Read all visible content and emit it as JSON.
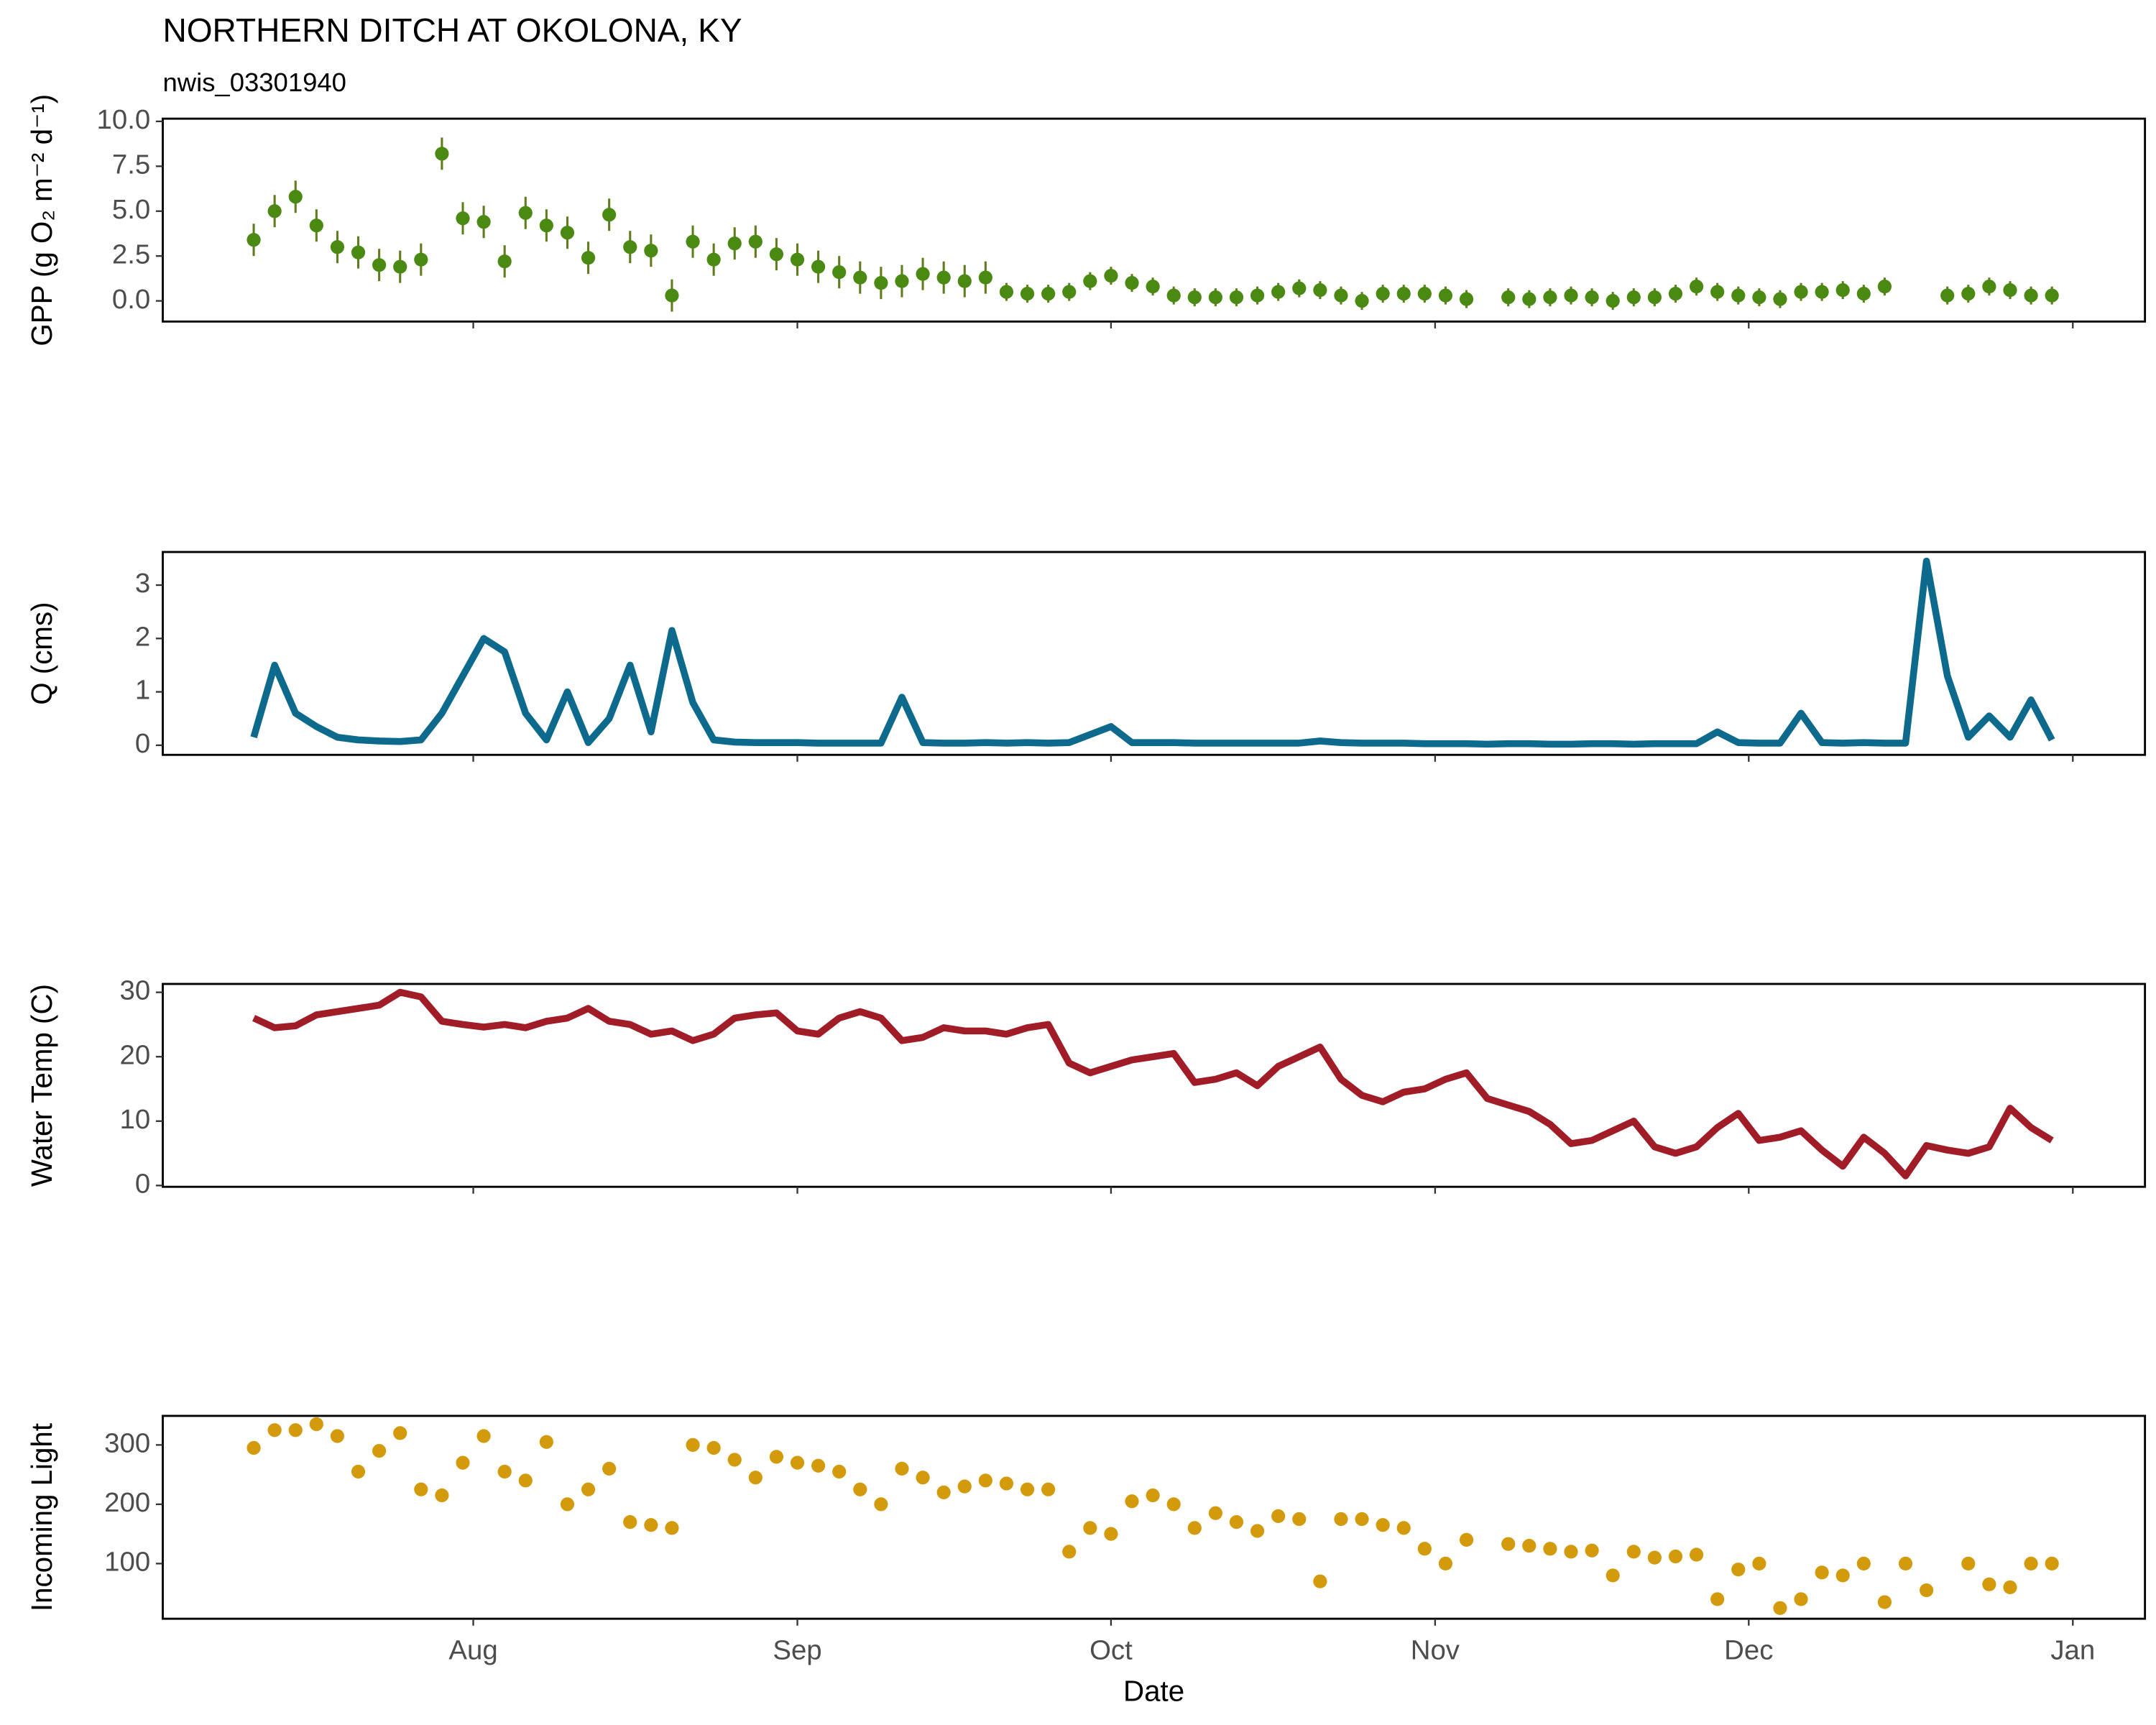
{
  "chart_data": [
    {
      "type": "scatter",
      "title": "NORTHERN DITCH AT OKOLONA, KY",
      "subtitle": "nwis_03301940",
      "ylabel": "GPP (g  O₂ m⁻² d⁻¹)",
      "color": "#4a8a12",
      "error_color": "#5f7d1c",
      "x": [
        -21,
        -19,
        -17,
        -15,
        -13,
        -11,
        -9,
        -7,
        -5,
        -3,
        -1,
        1,
        3,
        5,
        7,
        9,
        11,
        13,
        15,
        17,
        19,
        21,
        23,
        25,
        27,
        29,
        31,
        33,
        35,
        37,
        39,
        41,
        43,
        45,
        47,
        49,
        51,
        53,
        55,
        57,
        59,
        61,
        63,
        65,
        67,
        69,
        71,
        73,
        75,
        77,
        79,
        81,
        83,
        85,
        87,
        89,
        91,
        93,
        95,
        97,
        99,
        101,
        103,
        105,
        107,
        109,
        111,
        113,
        115,
        117,
        119,
        121,
        123,
        125,
        127,
        129,
        131,
        133,
        135,
        137,
        139,
        141,
        143,
        145,
        147,
        149,
        151
      ],
      "values": [
        3.4,
        5.0,
        5.8,
        4.2,
        3.0,
        2.7,
        2.0,
        1.9,
        2.3,
        8.2,
        4.6,
        4.4,
        2.2,
        4.9,
        4.2,
        3.8,
        2.4,
        4.8,
        3.0,
        2.8,
        0.3,
        3.3,
        2.3,
        3.2,
        3.3,
        2.6,
        2.3,
        1.9,
        1.6,
        1.3,
        1.0,
        1.1,
        1.5,
        1.3,
        1.1,
        1.3,
        0.5,
        0.4,
        0.4,
        0.5,
        1.1,
        1.4,
        1.0,
        0.8,
        0.3,
        0.2,
        0.2,
        0.2,
        0.3,
        0.5,
        0.7,
        0.6,
        0.3,
        0.0,
        0.4,
        0.4,
        0.4,
        0.3,
        0.1,
        null,
        0.2,
        0.1,
        0.2,
        0.3,
        0.2,
        0.0,
        0.2,
        0.2,
        0.4,
        0.8,
        0.5,
        0.3,
        0.2,
        0.1,
        0.5,
        0.5,
        0.6,
        0.4,
        0.8,
        null,
        null,
        0.3,
        0.4,
        0.8,
        0.6,
        0.3,
        0.3
      ],
      "errors": [
        0.9,
        0.9,
        0.9,
        0.9,
        0.9,
        0.9,
        0.9,
        0.9,
        0.9,
        0.9,
        0.9,
        0.9,
        0.9,
        0.9,
        0.9,
        0.9,
        0.9,
        0.9,
        0.9,
        0.9,
        0.9,
        0.9,
        0.9,
        0.9,
        0.9,
        0.9,
        0.9,
        0.9,
        0.9,
        0.9,
        0.9,
        0.9,
        0.9,
        0.9,
        0.9,
        0.9,
        0.5,
        0.5,
        0.5,
        0.5,
        0.5,
        0.5,
        0.5,
        0.5,
        0.5,
        0.5,
        0.5,
        0.5,
        0.5,
        0.5,
        0.5,
        0.5,
        0.5,
        0.5,
        0.5,
        0.5,
        0.5,
        0.5,
        0.5,
        null,
        0.5,
        0.5,
        0.5,
        0.5,
        0.5,
        0.5,
        0.5,
        0.5,
        0.5,
        0.5,
        0.5,
        0.5,
        0.5,
        0.5,
        0.5,
        0.5,
        0.5,
        0.5,
        0.5,
        null,
        null,
        0.5,
        0.5,
        0.5,
        0.5,
        0.5,
        0.5
      ],
      "xlim": [
        -29.7,
        159.9
      ],
      "xticks": [
        0,
        31,
        61,
        92,
        122,
        153
      ],
      "ylim": [
        -1.15,
        10.15
      ],
      "yticks": [
        {
          "value": 0,
          "label": "0.0"
        },
        {
          "value": 2.5,
          "label": "2.5"
        },
        {
          "value": 5,
          "label": "5.0"
        },
        {
          "value": 7.5,
          "label": "7.5"
        },
        {
          "value": 10,
          "label": "10.0"
        }
      ]
    },
    {
      "type": "line",
      "ylabel": "Q (cms)",
      "color": "#0d6a8c",
      "x": [
        -21,
        -19,
        -17,
        -15,
        -13,
        -11,
        -9,
        -7,
        -5,
        -3,
        -1,
        1,
        3,
        5,
        7,
        9,
        11,
        13,
        15,
        17,
        19,
        21,
        23,
        25,
        27,
        29,
        31,
        33,
        35,
        37,
        39,
        41,
        43,
        45,
        47,
        49,
        51,
        53,
        55,
        57,
        59,
        61,
        63,
        65,
        67,
        69,
        71,
        73,
        75,
        77,
        79,
        81,
        83,
        85,
        87,
        89,
        91,
        93,
        95,
        97,
        99,
        101,
        103,
        105,
        107,
        109,
        111,
        113,
        115,
        117,
        119,
        121,
        123,
        125,
        127,
        129,
        131,
        133,
        135,
        137,
        139,
        141,
        143,
        145,
        147,
        149,
        151
      ],
      "values": [
        0.15,
        1.5,
        0.6,
        0.35,
        0.15,
        0.1,
        0.08,
        0.07,
        0.1,
        0.6,
        1.3,
        2.0,
        1.75,
        0.6,
        0.1,
        1.0,
        0.05,
        0.5,
        1.5,
        0.25,
        2.15,
        0.8,
        0.1,
        0.06,
        0.05,
        0.05,
        0.05,
        0.04,
        0.04,
        0.04,
        0.04,
        0.9,
        0.05,
        0.04,
        0.04,
        0.05,
        0.04,
        0.05,
        0.04,
        0.05,
        0.2,
        0.35,
        0.05,
        0.05,
        0.05,
        0.04,
        0.04,
        0.04,
        0.04,
        0.04,
        0.04,
        0.08,
        0.05,
        0.04,
        0.04,
        0.04,
        0.03,
        0.03,
        0.03,
        0.02,
        0.03,
        0.03,
        0.02,
        0.02,
        0.03,
        0.03,
        0.02,
        0.03,
        0.03,
        0.03,
        0.25,
        0.05,
        0.04,
        0.04,
        0.6,
        0.05,
        0.04,
        0.05,
        0.04,
        0.04,
        3.45,
        1.3,
        0.15,
        0.55,
        0.15,
        0.85,
        0.1
      ],
      "xlim": [
        -29.7,
        159.9
      ],
      "xticks": [
        0,
        31,
        61,
        92,
        122,
        153
      ],
      "ylim": [
        -0.18,
        3.62
      ],
      "yticks": [
        0,
        1,
        2,
        3
      ]
    },
    {
      "type": "line",
      "ylabel": "Water Temp (C)",
      "color": "#a01d28",
      "x": [
        -21,
        -19,
        -17,
        -15,
        -13,
        -11,
        -9,
        -7,
        -5,
        -3,
        -1,
        1,
        3,
        5,
        7,
        9,
        11,
        13,
        15,
        17,
        19,
        21,
        23,
        25,
        27,
        29,
        31,
        33,
        35,
        37,
        39,
        41,
        43,
        45,
        47,
        49,
        51,
        53,
        55,
        57,
        59,
        61,
        63,
        65,
        67,
        69,
        71,
        73,
        75,
        77,
        79,
        81,
        83,
        85,
        87,
        89,
        91,
        93,
        95,
        97,
        99,
        101,
        103,
        105,
        107,
        109,
        111,
        113,
        115,
        117,
        119,
        121,
        123,
        125,
        127,
        129,
        131,
        133,
        135,
        137,
        139,
        141,
        143,
        145,
        147,
        149,
        151
      ],
      "values": [
        26,
        24.5,
        24.8,
        26.5,
        27,
        27.5,
        28,
        30,
        29.3,
        25.5,
        25,
        24.6,
        25,
        24.5,
        25.5,
        26,
        27.5,
        25.5,
        25,
        23.5,
        24,
        22.5,
        23.5,
        26,
        26.5,
        26.8,
        24,
        23.5,
        26,
        27,
        26,
        22.5,
        23,
        24.5,
        24,
        24,
        23.5,
        24.5,
        25,
        19,
        17.5,
        18.5,
        19.5,
        20,
        20.5,
        16,
        16.5,
        17.5,
        15.5,
        18.5,
        20,
        21.5,
        16.5,
        14,
        13,
        14.5,
        15,
        16.5,
        17.5,
        13.5,
        12.5,
        11.5,
        9.5,
        6.5,
        7,
        8.5,
        10,
        6,
        5,
        6,
        9,
        11.2,
        7,
        7.5,
        8.5,
        5.5,
        3,
        7.5,
        5,
        1.5,
        6.2,
        5.5,
        5,
        6,
        12,
        9,
        7
      ],
      "xlim": [
        -29.7,
        159.9
      ],
      "xticks": [
        0,
        31,
        61,
        92,
        122,
        153
      ],
      "ylim": [
        -0.2,
        31.3
      ],
      "yticks": [
        0,
        10,
        20,
        30
      ]
    },
    {
      "type": "scatter",
      "ylabel": "Incoming Light",
      "xlabel": "Date",
      "color": "#d39b0b",
      "x": [
        -21,
        -19,
        -17,
        -15,
        -13,
        -11,
        -9,
        -7,
        -5,
        -3,
        -1,
        1,
        3,
        5,
        7,
        9,
        11,
        13,
        15,
        17,
        19,
        21,
        23,
        25,
        27,
        29,
        31,
        33,
        35,
        37,
        39,
        41,
        43,
        45,
        47,
        49,
        51,
        53,
        55,
        57,
        59,
        61,
        63,
        65,
        67,
        69,
        71,
        73,
        75,
        77,
        79,
        81,
        83,
        85,
        87,
        89,
        91,
        93,
        95,
        97,
        99,
        101,
        103,
        105,
        107,
        109,
        111,
        113,
        115,
        117,
        119,
        121,
        123,
        125,
        127,
        129,
        131,
        133,
        135,
        137,
        139,
        141,
        143,
        145,
        147,
        149,
        151
      ],
      "values": [
        295,
        325,
        325,
        335,
        315,
        255,
        290,
        320,
        225,
        215,
        270,
        315,
        255,
        240,
        305,
        200,
        225,
        260,
        170,
        165,
        160,
        300,
        295,
        275,
        245,
        280,
        270,
        265,
        255,
        225,
        200,
        260,
        245,
        220,
        230,
        240,
        235,
        225,
        225,
        120,
        160,
        150,
        205,
        215,
        200,
        160,
        185,
        170,
        155,
        180,
        175,
        70,
        175,
        175,
        165,
        160,
        125,
        100,
        140,
        null,
        133,
        130,
        125,
        120,
        122,
        80,
        120,
        110,
        112,
        115,
        40,
        90,
        100,
        25,
        40,
        85,
        80,
        100,
        35,
        100,
        55,
        null,
        100,
        65,
        60,
        100,
        100
      ],
      "xlim": [
        -29.7,
        159.9
      ],
      "xticks": [
        {
          "value": 0,
          "label": "Aug"
        },
        {
          "value": 31,
          "label": "Sep"
        },
        {
          "value": 61,
          "label": "Oct"
        },
        {
          "value": 92,
          "label": "Nov"
        },
        {
          "value": 122,
          "label": "Dec"
        },
        {
          "value": 153,
          "label": "Jan"
        }
      ],
      "ylim": [
        7,
        349
      ],
      "yticks": [
        100,
        200,
        300
      ]
    }
  ]
}
